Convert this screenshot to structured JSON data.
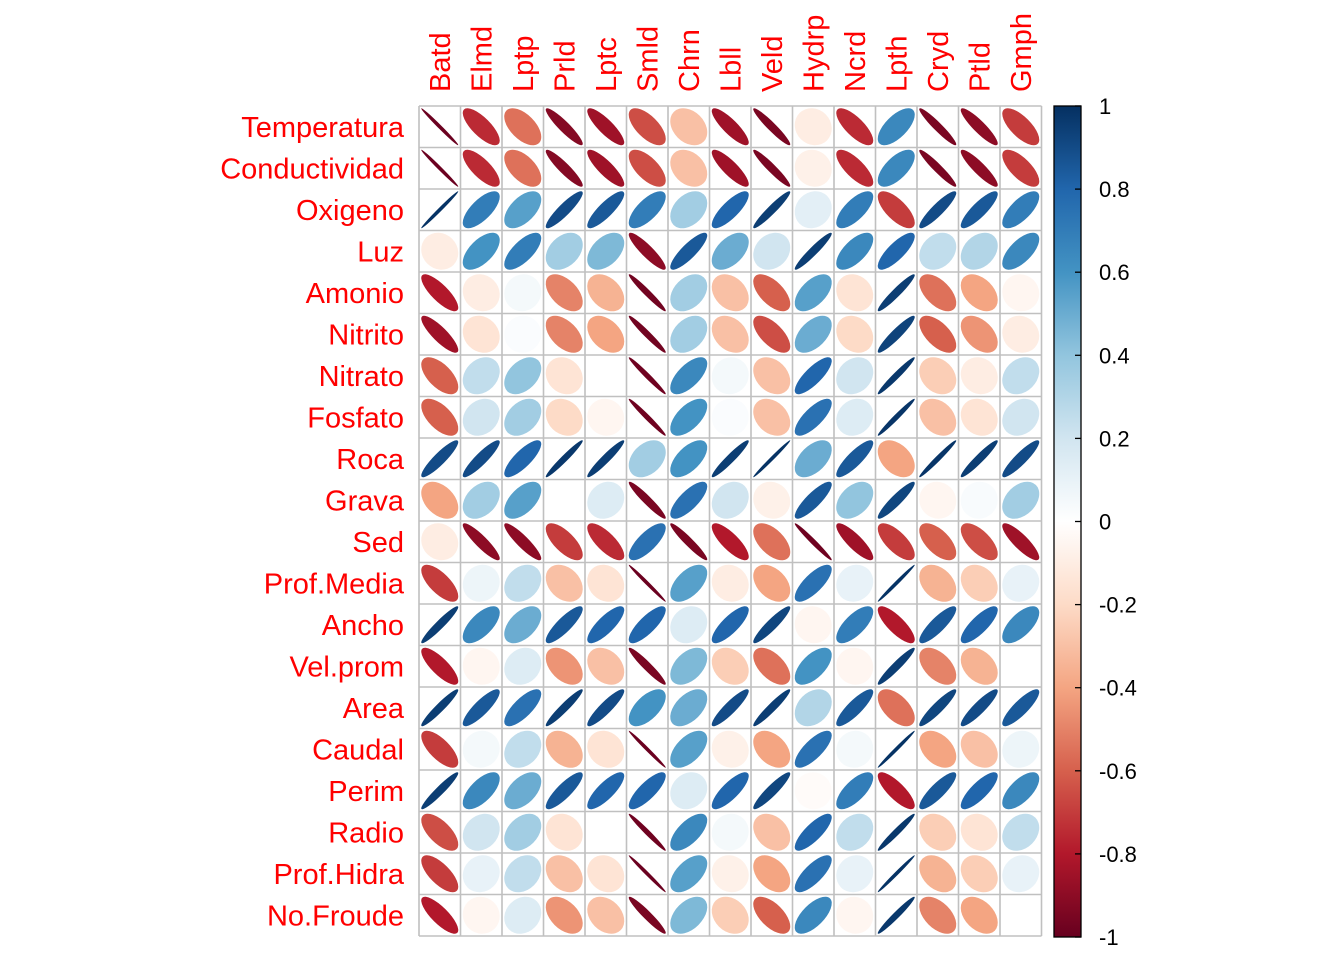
{
  "chart_data": {
    "type": "heatmap",
    "style": "corrplot-ellipse",
    "title": "",
    "columns": [
      "Batd",
      "Elmd",
      "Lptp",
      "Prld",
      "Lptc",
      "Smld",
      "Chrn",
      "Lbll",
      "Veld",
      "Hydrp",
      "Ncrd",
      "Lpth",
      "Cryd",
      "Ptld",
      "Gmph"
    ],
    "rows": [
      "Temperatura",
      "Conductividad",
      "Oxigeno",
      "Luz",
      "Amonio",
      "Nitrito",
      "Nitrato",
      "Fosfato",
      "Roca",
      "Grava",
      "Sed",
      "Prof.Media",
      "Ancho",
      "Vel.prom",
      "Area",
      "Caudal",
      "Perim",
      "Radio",
      "Prof.Hidra",
      "No.Froude"
    ],
    "values": [
      [
        -0.99,
        -0.75,
        -0.55,
        -0.92,
        -0.85,
        -0.65,
        -0.3,
        -0.85,
        -0.95,
        -0.1,
        -0.75,
        0.65,
        -0.95,
        -0.9,
        -0.7
      ],
      [
        -0.99,
        -0.75,
        -0.55,
        -0.92,
        -0.85,
        -0.65,
        -0.3,
        -0.85,
        -0.95,
        -0.08,
        -0.75,
        0.65,
        -0.95,
        -0.9,
        -0.7
      ],
      [
        0.99,
        0.7,
        0.55,
        0.9,
        0.85,
        0.7,
        0.35,
        0.8,
        0.95,
        0.12,
        0.7,
        -0.7,
        0.9,
        0.85,
        0.7
      ],
      [
        -0.1,
        0.6,
        0.7,
        0.35,
        0.45,
        -0.9,
        0.85,
        0.5,
        0.2,
        0.95,
        0.65,
        0.8,
        0.25,
        0.3,
        0.65
      ],
      [
        -0.8,
        -0.1,
        0.05,
        -0.5,
        -0.35,
        -0.97,
        0.35,
        -0.3,
        -0.6,
        0.55,
        -0.15,
        0.95,
        -0.55,
        -0.4,
        -0.05
      ],
      [
        -0.85,
        -0.15,
        0.02,
        -0.5,
        -0.4,
        -0.97,
        0.35,
        -0.3,
        -0.65,
        0.5,
        -0.2,
        0.93,
        -0.6,
        -0.45,
        -0.1
      ],
      [
        -0.6,
        0.25,
        0.4,
        -0.15,
        0.0,
        -0.98,
        0.65,
        0.05,
        -0.3,
        0.8,
        0.2,
        0.97,
        -0.25,
        -0.1,
        0.25
      ],
      [
        -0.6,
        0.2,
        0.35,
        -0.2,
        -0.05,
        -0.98,
        0.6,
        0.02,
        -0.3,
        0.75,
        0.15,
        0.98,
        -0.3,
        -0.15,
        0.2
      ],
      [
        0.9,
        0.9,
        0.8,
        0.97,
        0.95,
        0.35,
        0.6,
        0.95,
        0.99,
        0.5,
        0.85,
        -0.4,
        0.98,
        0.95,
        0.9
      ],
      [
        -0.4,
        0.35,
        0.55,
        0.0,
        0.15,
        -0.95,
        0.75,
        0.2,
        -0.08,
        0.85,
        0.4,
        0.92,
        -0.05,
        0.03,
        0.35
      ],
      [
        -0.1,
        -0.9,
        -0.9,
        -0.7,
        -0.75,
        0.75,
        -0.95,
        -0.8,
        -0.55,
        -0.98,
        -0.85,
        -0.7,
        -0.6,
        -0.65,
        -0.85
      ],
      [
        -0.7,
        0.08,
        0.25,
        -0.3,
        -0.15,
        -0.99,
        0.55,
        -0.1,
        -0.4,
        0.75,
        0.1,
        0.99,
        -0.35,
        -0.25,
        0.1
      ],
      [
        0.95,
        0.65,
        0.5,
        0.85,
        0.8,
        0.8,
        0.15,
        0.8,
        0.92,
        -0.05,
        0.7,
        -0.8,
        0.85,
        0.8,
        0.65
      ],
      [
        -0.8,
        -0.05,
        0.15,
        -0.45,
        -0.3,
        -0.95,
        0.45,
        -0.25,
        -0.55,
        0.6,
        -0.05,
        0.95,
        -0.5,
        -0.35,
        0.0
      ],
      [
        0.95,
        0.85,
        0.75,
        0.95,
        0.9,
        0.6,
        0.5,
        0.9,
        0.95,
        0.3,
        0.85,
        -0.55,
        0.92,
        0.9,
        0.85
      ],
      [
        -0.7,
        0.05,
        0.25,
        -0.35,
        -0.15,
        -0.99,
        0.55,
        -0.08,
        -0.4,
        0.75,
        0.05,
        0.99,
        -0.4,
        -0.3,
        0.08
      ],
      [
        0.95,
        0.65,
        0.5,
        0.85,
        0.8,
        0.8,
        0.15,
        0.8,
        0.92,
        -0.02,
        0.7,
        -0.8,
        0.85,
        0.8,
        0.65
      ],
      [
        -0.65,
        0.2,
        0.35,
        -0.15,
        0.0,
        -0.98,
        0.65,
        0.05,
        -0.3,
        0.8,
        0.25,
        0.97,
        -0.25,
        -0.15,
        0.25
      ],
      [
        -0.7,
        0.1,
        0.25,
        -0.3,
        -0.15,
        -0.99,
        0.55,
        -0.08,
        -0.4,
        0.75,
        0.1,
        0.99,
        -0.35,
        -0.25,
        0.1
      ],
      [
        -0.8,
        -0.05,
        0.15,
        -0.45,
        -0.3,
        -0.95,
        0.45,
        -0.25,
        -0.6,
        0.65,
        -0.05,
        0.97,
        -0.5,
        -0.4,
        0.0
      ]
    ],
    "colorbar": {
      "ticks": [
        "1",
        "0.8",
        "0.6",
        "0.4",
        "0.2",
        "0",
        "-0.2",
        "-0.4",
        "-0.6",
        "-0.8",
        "-1"
      ],
      "range": [
        -1,
        1
      ]
    },
    "colors": {
      "label_color": "#ff0000",
      "grid_color": "#c0c0c0",
      "palette": [
        "#67001F",
        "#B2182B",
        "#D6604D",
        "#F4A582",
        "#FDDBC7",
        "#FFFFFF",
        "#D1E5F0",
        "#92C5DE",
        "#4393C3",
        "#2166AC",
        "#053061"
      ]
    }
  }
}
